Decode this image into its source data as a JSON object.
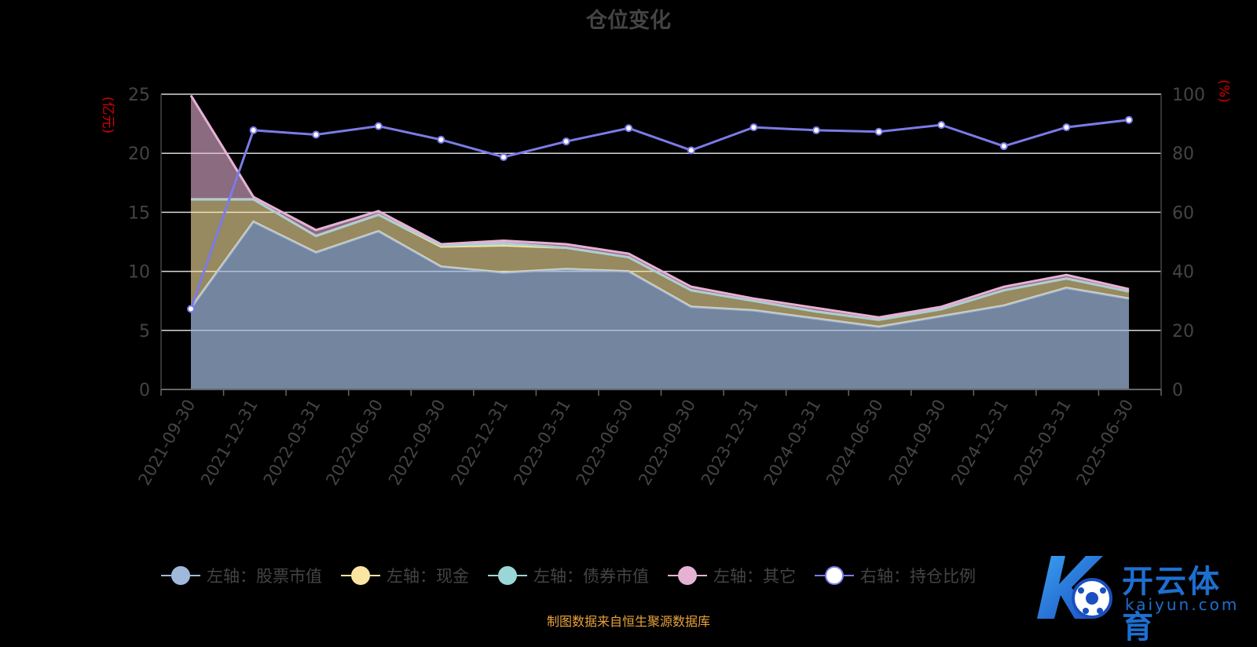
{
  "chart_data": {
    "type": "area",
    "title": "仓位变化",
    "left_unit": "(亿元)",
    "right_unit": "(%)",
    "categories": [
      "2021-09-30",
      "2021-12-31",
      "2022-03-31",
      "2022-06-30",
      "2022-09-30",
      "2022-12-31",
      "2023-03-31",
      "2023-06-30",
      "2023-09-30",
      "2023-12-31",
      "2024-03-31",
      "2024-06-30",
      "2024-09-30",
      "2024-12-31",
      "2025-03-31",
      "2025-06-30"
    ],
    "left_axis": {
      "min": 0,
      "max": 25,
      "ticks": [
        "0",
        "5",
        "10",
        "15",
        "20",
        "25"
      ]
    },
    "right_axis": {
      "min": 0,
      "max": 100,
      "ticks": [
        "0",
        "20",
        "40",
        "60",
        "80",
        "100"
      ]
    },
    "stacked_series": [
      {
        "name": "左轴：股票市值",
        "color": "#a0b8dc",
        "values": [
          6.9,
          14.2,
          11.6,
          13.4,
          10.4,
          9.9,
          10.2,
          10.0,
          7.0,
          6.7,
          6.0,
          5.3,
          6.2,
          7.1,
          8.6,
          7.7
        ]
      },
      {
        "name": "左轴：现金",
        "color": "#fbe5a0",
        "values": [
          9.2,
          1.9,
          1.4,
          1.4,
          1.7,
          2.3,
          1.8,
          1.2,
          1.4,
          0.8,
          0.6,
          0.6,
          0.6,
          1.3,
          0.8,
          0.6
        ]
      },
      {
        "name": "左轴：债券市值",
        "color": "#9ad6d6",
        "values": [
          0,
          0,
          0,
          0,
          0.1,
          0.2,
          0,
          0,
          0,
          0,
          0,
          0,
          0,
          0,
          0,
          0
        ]
      },
      {
        "name": "左轴：其它",
        "color": "#e6b2d4",
        "values": [
          8.8,
          0.2,
          0.5,
          0.3,
          0.1,
          0.2,
          0.3,
          0.3,
          0.3,
          0.2,
          0.3,
          0.2,
          0.2,
          0.3,
          0.3,
          0.2
        ]
      }
    ],
    "line_series": {
      "name": "右轴：持仓比例",
      "color": "#7b7be8",
      "axis": "right",
      "values": [
        27.3,
        87.8,
        86.3,
        89.2,
        84.6,
        78.7,
        84.0,
        88.5,
        81.0,
        88.8,
        87.8,
        87.3,
        89.6,
        82.4,
        88.8,
        91.3
      ]
    },
    "grid": true,
    "legend": "bottom"
  },
  "footer": {
    "source": "制图数据来自恒生聚源数据库"
  },
  "watermark": {
    "brand": "开云体育",
    "domain": "kaiyun.com"
  }
}
